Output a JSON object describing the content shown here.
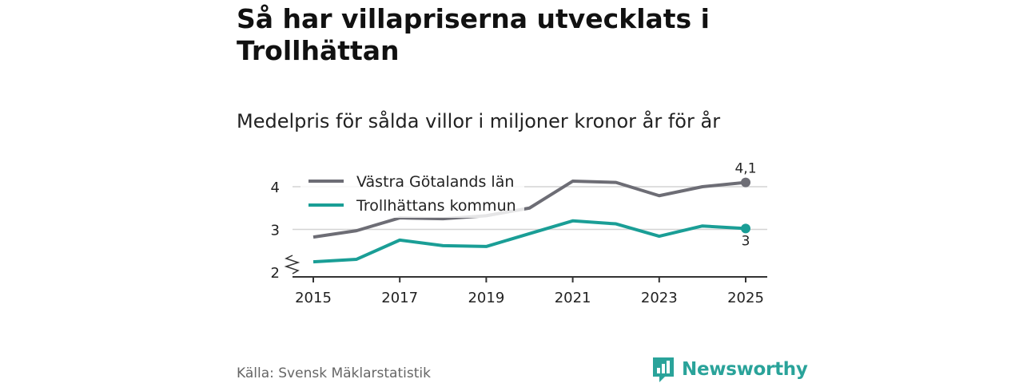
{
  "title": "Så har villapriserna utvecklats i Trollhättan",
  "subtitle": "Medelpris för sålda villor i miljoner kronor år för år",
  "source": "Källa: Svensk Mäklarstatistik",
  "brand": {
    "name": "Newsworthy",
    "color": "#2aa39a",
    "icon": "bar-chart-speech-bubble-icon"
  },
  "chart_data": {
    "type": "line",
    "x": [
      2015,
      2016,
      2017,
      2018,
      2019,
      2020,
      2021,
      2022,
      2023,
      2024,
      2025
    ],
    "x_ticks": [
      "2015",
      "2017",
      "2019",
      "2021",
      "2023",
      "2025"
    ],
    "y_ticks": [
      "2",
      "3",
      "4"
    ],
    "ylim": [
      2,
      4.3
    ],
    "grid": true,
    "axis_break": true,
    "legend_position": "top-left",
    "series": [
      {
        "name": "Västra Götalands län",
        "color": "#6d6d75",
        "values": [
          2.82,
          2.97,
          3.27,
          3.25,
          3.32,
          3.5,
          4.13,
          4.1,
          3.79,
          4.0,
          4.1
        ],
        "end_label": "4,1"
      },
      {
        "name": "Trollhättans kommun",
        "color": "#1a9e96",
        "values": [
          2.24,
          2.3,
          2.75,
          2.62,
          2.6,
          2.9,
          3.2,
          3.13,
          2.84,
          3.08,
          3.02
        ],
        "end_label": "3"
      }
    ]
  }
}
